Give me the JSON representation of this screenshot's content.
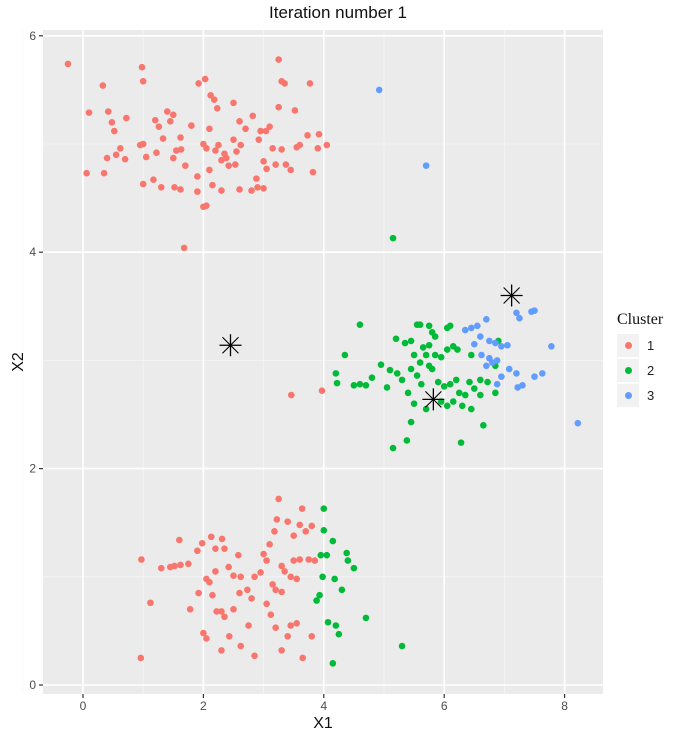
{
  "chart_data": {
    "type": "scatter",
    "title": "Iteration number 1",
    "xlabel": "X1",
    "ylabel": "X2",
    "xlim": [
      -0.66,
      8.6
    ],
    "ylim": [
      -0.08,
      6.15
    ],
    "xticks": [
      0,
      2,
      4,
      6,
      8
    ],
    "yticks": [
      0,
      2,
      4,
      6
    ],
    "grid": true,
    "legend": {
      "title": "Cluster",
      "position": "right",
      "entries": [
        "1",
        "2",
        "3"
      ]
    },
    "colors": {
      "1": "#F8766D",
      "2": "#00BA38",
      "3": "#619CFF",
      "centroid": "#000000"
    },
    "centroids": [
      {
        "cluster": "1",
        "x": 2.45,
        "y": 3.14
      },
      {
        "cluster": "2",
        "x": 5.82,
        "y": 2.64
      },
      {
        "cluster": "3",
        "x": 7.12,
        "y": 3.6
      }
    ],
    "series": [
      {
        "name": "1",
        "points": [
          [
            -0.25,
            5.74
          ],
          [
            0.33,
            5.54
          ],
          [
            0.98,
            5.71
          ],
          [
            1.0,
            5.58
          ],
          [
            0.1,
            5.29
          ],
          [
            0.42,
            5.3
          ],
          [
            0.48,
            5.2
          ],
          [
            0.72,
            5.24
          ],
          [
            0.52,
            5.12
          ],
          [
            0.62,
            4.96
          ],
          [
            0.4,
            4.87
          ],
          [
            0.55,
            4.9
          ],
          [
            0.7,
            4.86
          ],
          [
            0.06,
            4.73
          ],
          [
            0.35,
            4.73
          ],
          [
            0.95,
            4.99
          ],
          [
            1.0,
            5.0
          ],
          [
            1.26,
            5.16
          ],
          [
            1.4,
            5.3
          ],
          [
            1.5,
            5.27
          ],
          [
            1.45,
            5.21
          ],
          [
            1.62,
            5.06
          ],
          [
            1.2,
            5.22
          ],
          [
            1.33,
            5.05
          ],
          [
            1.22,
            4.92
          ],
          [
            1.05,
            4.88
          ],
          [
            1.55,
            4.94
          ],
          [
            1.63,
            4.95
          ],
          [
            1.7,
            4.8
          ],
          [
            1.5,
            4.87
          ],
          [
            1.0,
            4.63
          ],
          [
            1.17,
            4.67
          ],
          [
            1.3,
            4.6
          ],
          [
            1.52,
            4.6
          ],
          [
            1.62,
            4.58
          ],
          [
            1.9,
            4.56
          ],
          [
            1.68,
            4.04
          ],
          [
            2.0,
            4.42
          ],
          [
            2.05,
            4.43
          ],
          [
            1.92,
            5.56
          ],
          [
            2.03,
            5.6
          ],
          [
            2.12,
            5.45
          ],
          [
            2.18,
            5.41
          ],
          [
            2.23,
            5.33
          ],
          [
            2.1,
            5.14
          ],
          [
            1.8,
            5.17
          ],
          [
            2.0,
            5.0
          ],
          [
            2.05,
            4.96
          ],
          [
            2.2,
            4.94
          ],
          [
            2.25,
            4.99
          ],
          [
            2.3,
            4.85
          ],
          [
            2.1,
            4.76
          ],
          [
            1.9,
            4.7
          ],
          [
            2.15,
            4.62
          ],
          [
            2.3,
            4.57
          ],
          [
            2.5,
            5.38
          ],
          [
            2.6,
            5.21
          ],
          [
            2.7,
            5.14
          ],
          [
            2.82,
            5.26
          ],
          [
            2.95,
            5.12
          ],
          [
            2.92,
            5.04
          ],
          [
            3.04,
            5.12
          ],
          [
            3.1,
            5.16
          ],
          [
            3.15,
            4.96
          ],
          [
            3.3,
            4.95
          ],
          [
            3.2,
            4.81
          ],
          [
            3.0,
            4.84
          ],
          [
            3.05,
            4.77
          ],
          [
            2.88,
            4.68
          ],
          [
            3.25,
            5.34
          ],
          [
            3.35,
            5.56
          ],
          [
            3.52,
            5.31
          ],
          [
            3.3,
            5.58
          ],
          [
            3.25,
            5.78
          ],
          [
            3.77,
            5.56
          ],
          [
            2.5,
            5.04
          ],
          [
            2.55,
            4.93
          ],
          [
            2.62,
            4.99
          ],
          [
            2.42,
            4.8
          ],
          [
            2.35,
            4.91
          ],
          [
            2.8,
            4.57
          ],
          [
            2.6,
            4.58
          ],
          [
            2.53,
            4.81
          ],
          [
            3.37,
            4.81
          ],
          [
            3.45,
            4.76
          ],
          [
            2.38,
            4.87
          ],
          [
            3.6,
            4.99
          ],
          [
            3.92,
            5.09
          ],
          [
            4.05,
            4.99
          ],
          [
            3.82,
            4.74
          ],
          [
            2.9,
            4.6
          ],
          [
            3.0,
            4.59
          ],
          [
            3.46,
            2.68
          ],
          [
            3.97,
            2.72
          ],
          [
            3.9,
            4.96
          ],
          [
            3.73,
            5.08
          ],
          [
            3.55,
            4.97
          ],
          [
            0.97,
            1.16
          ],
          [
            1.12,
            0.76
          ],
          [
            0.96,
            0.25
          ],
          [
            1.3,
            1.08
          ],
          [
            1.45,
            1.09
          ],
          [
            1.52,
            1.1
          ],
          [
            1.62,
            1.11
          ],
          [
            1.75,
            1.12
          ],
          [
            1.6,
            1.34
          ],
          [
            1.78,
            0.7
          ],
          [
            1.9,
            1.24
          ],
          [
            1.92,
            0.85
          ],
          [
            1.98,
            1.31
          ],
          [
            2.2,
            1.05
          ],
          [
            2.13,
            1.37
          ],
          [
            2.31,
            1.35
          ],
          [
            2.35,
            1.26
          ],
          [
            2.2,
            1.26
          ],
          [
            2.42,
            1.09
          ],
          [
            2.5,
            1.01
          ],
          [
            2.58,
            1.2
          ],
          [
            2.62,
            1.0
          ],
          [
            2.05,
            0.98
          ],
          [
            2.1,
            0.95
          ],
          [
            2.15,
            0.83
          ],
          [
            2.22,
            0.68
          ],
          [
            2.3,
            0.68
          ],
          [
            2.35,
            0.63
          ],
          [
            2.0,
            0.48
          ],
          [
            2.05,
            0.43
          ],
          [
            2.43,
            0.45
          ],
          [
            2.3,
            0.32
          ],
          [
            2.73,
            0.88
          ],
          [
            2.8,
            0.8
          ],
          [
            2.85,
            1.0
          ],
          [
            2.95,
            1.04
          ],
          [
            3.0,
            1.21
          ],
          [
            3.05,
            1.15
          ],
          [
            3.1,
            1.3
          ],
          [
            3.18,
            1.42
          ],
          [
            3.22,
            1.53
          ],
          [
            3.25,
            1.72
          ],
          [
            3.4,
            1.51
          ],
          [
            3.6,
            1.48
          ],
          [
            3.64,
            1.63
          ],
          [
            3.8,
            1.47
          ],
          [
            3.7,
            1.42
          ],
          [
            3.5,
            1.38
          ],
          [
            3.5,
            1.15
          ],
          [
            3.6,
            1.16
          ],
          [
            3.75,
            1.16
          ],
          [
            3.85,
            1.15
          ],
          [
            3.3,
            1.1
          ],
          [
            3.35,
            1.05
          ],
          [
            3.45,
            1.0
          ],
          [
            3.55,
            0.98
          ],
          [
            3.15,
            0.93
          ],
          [
            3.2,
            0.88
          ],
          [
            3.3,
            0.86
          ],
          [
            3.05,
            0.75
          ],
          [
            3.12,
            0.65
          ],
          [
            3.45,
            0.55
          ],
          [
            3.55,
            0.57
          ],
          [
            3.4,
            0.45
          ],
          [
            3.2,
            0.53
          ],
          [
            3.8,
            0.45
          ],
          [
            3.65,
            0.25
          ],
          [
            3.3,
            0.32
          ],
          [
            2.62,
            0.36
          ],
          [
            2.85,
            0.27
          ],
          [
            2.75,
            0.55
          ],
          [
            2.5,
            0.7
          ],
          [
            2.6,
            0.85
          ]
        ]
      },
      {
        "name": "2",
        "points": [
          [
            5.15,
            4.13
          ],
          [
            4.6,
            3.33
          ],
          [
            4.35,
            3.05
          ],
          [
            4.2,
            2.88
          ],
          [
            4.22,
            2.79
          ],
          [
            4.5,
            2.77
          ],
          [
            4.6,
            2.78
          ],
          [
            4.7,
            2.77
          ],
          [
            4.8,
            2.84
          ],
          [
            4.95,
            2.96
          ],
          [
            5.1,
            2.91
          ],
          [
            5.05,
            2.75
          ],
          [
            5.22,
            2.88
          ],
          [
            5.3,
            2.82
          ],
          [
            5.35,
            3.16
          ],
          [
            5.45,
            3.18
          ],
          [
            5.2,
            3.2
          ],
          [
            5.55,
            3.33
          ],
          [
            5.6,
            3.33
          ],
          [
            5.75,
            3.32
          ],
          [
            5.8,
            3.26
          ],
          [
            5.85,
            3.22
          ],
          [
            6.05,
            3.3
          ],
          [
            6.1,
            3.32
          ],
          [
            5.75,
            3.14
          ],
          [
            5.65,
            3.12
          ],
          [
            5.5,
            3.05
          ],
          [
            5.6,
            2.98
          ],
          [
            5.7,
            3.05
          ],
          [
            5.75,
            2.95
          ],
          [
            5.85,
            3.05
          ],
          [
            5.95,
            3.03
          ],
          [
            6.05,
            3.1
          ],
          [
            6.15,
            3.13
          ],
          [
            6.22,
            3.1
          ],
          [
            5.45,
            2.92
          ],
          [
            5.55,
            2.86
          ],
          [
            5.62,
            2.78
          ],
          [
            5.8,
            2.92
          ],
          [
            5.9,
            2.8
          ],
          [
            6.0,
            2.76
          ],
          [
            6.1,
            2.78
          ],
          [
            6.2,
            2.82
          ],
          [
            6.25,
            2.7
          ],
          [
            6.35,
            2.68
          ],
          [
            6.42,
            2.8
          ],
          [
            6.5,
            2.74
          ],
          [
            6.6,
            2.68
          ],
          [
            5.4,
            2.7
          ],
          [
            5.5,
            2.6
          ],
          [
            5.7,
            2.55
          ],
          [
            5.95,
            2.62
          ],
          [
            6.05,
            2.58
          ],
          [
            6.15,
            2.62
          ],
          [
            6.3,
            2.58
          ],
          [
            6.45,
            2.55
          ],
          [
            6.65,
            2.4
          ],
          [
            6.28,
            2.24
          ],
          [
            5.15,
            2.19
          ],
          [
            5.38,
            2.26
          ],
          [
            5.45,
            2.43
          ],
          [
            6.85,
            2.95
          ],
          [
            6.9,
            3.18
          ],
          [
            6.72,
            2.8
          ],
          [
            6.85,
            2.7
          ],
          [
            6.6,
            2.82
          ],
          [
            6.45,
            3.05
          ],
          [
            4.0,
            1.63
          ],
          [
            4.0,
            1.43
          ],
          [
            4.15,
            1.33
          ],
          [
            4.38,
            1.22
          ],
          [
            4.4,
            1.15
          ],
          [
            4.5,
            1.08
          ],
          [
            3.95,
            1.2
          ],
          [
            4.05,
            1.2
          ],
          [
            3.98,
            1.0
          ],
          [
            4.18,
            0.98
          ],
          [
            4.3,
            0.88
          ],
          [
            3.93,
            0.83
          ],
          [
            3.88,
            0.78
          ],
          [
            4.2,
            0.55
          ],
          [
            4.07,
            0.58
          ],
          [
            4.25,
            0.47
          ],
          [
            4.15,
            0.2
          ],
          [
            4.7,
            0.62
          ],
          [
            5.3,
            0.36
          ]
        ]
      },
      {
        "name": "3",
        "points": [
          [
            4.92,
            5.5
          ],
          [
            5.7,
            4.8
          ],
          [
            6.35,
            3.28
          ],
          [
            6.45,
            3.3
          ],
          [
            6.55,
            3.32
          ],
          [
            6.7,
            3.38
          ],
          [
            6.95,
            3.13
          ],
          [
            7.05,
            3.14
          ],
          [
            7.2,
            3.44
          ],
          [
            7.25,
            3.39
          ],
          [
            7.45,
            3.45
          ],
          [
            7.5,
            3.46
          ],
          [
            6.85,
            3.16
          ],
          [
            6.75,
            3.18
          ],
          [
            6.6,
            3.22
          ],
          [
            6.5,
            3.15
          ],
          [
            6.62,
            3.05
          ],
          [
            6.75,
            3.02
          ],
          [
            6.8,
            2.98
          ],
          [
            6.88,
            3.0
          ],
          [
            6.7,
            2.95
          ],
          [
            7.08,
            2.92
          ],
          [
            7.2,
            2.88
          ],
          [
            7.5,
            2.85
          ],
          [
            7.63,
            2.88
          ],
          [
            7.78,
            3.13
          ],
          [
            7.22,
            2.75
          ],
          [
            7.3,
            2.77
          ],
          [
            6.95,
            2.85
          ],
          [
            6.88,
            2.78
          ],
          [
            8.22,
            2.42
          ]
        ]
      }
    ]
  }
}
